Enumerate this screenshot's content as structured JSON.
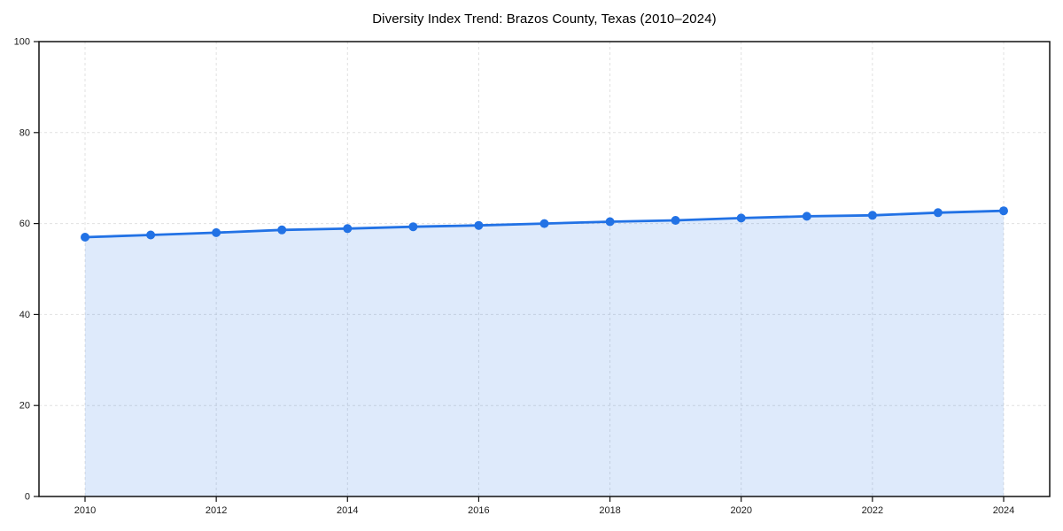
{
  "page": {
    "background": "#ffffff"
  },
  "chart_data": {
    "type": "area",
    "title": "Diversity Index Trend: Brazos County, Texas (2010–2024)",
    "x": [
      2010,
      2011,
      2012,
      2013,
      2014,
      2015,
      2016,
      2017,
      2018,
      2019,
      2020,
      2021,
      2022,
      2023,
      2024
    ],
    "series": [
      {
        "name": "Diversity Index",
        "values": [
          57.0,
          57.5,
          58.0,
          58.6,
          58.9,
          59.3,
          59.6,
          60.0,
          60.4,
          60.7,
          61.2,
          61.6,
          61.8,
          62.4,
          62.8
        ]
      }
    ],
    "xlabel": "",
    "ylabel": "",
    "ylim": [
      0,
      100
    ],
    "yticks": [
      0,
      20,
      40,
      60,
      80,
      100
    ],
    "xticks": [
      2010,
      2012,
      2014,
      2016,
      2018,
      2020,
      2022,
      2024
    ],
    "grid": true,
    "grid_style": "dashed",
    "legend_position": "none",
    "marker": "circle",
    "colors": {
      "line": "#2272e5",
      "marker": "#2272e5",
      "fill": "rgba(34,114,229,0.15)",
      "grid": "#e0e0e0",
      "spine": "#111111",
      "tick": "#111111",
      "tick_label": "#1a1a1a",
      "title": "#000000"
    }
  }
}
